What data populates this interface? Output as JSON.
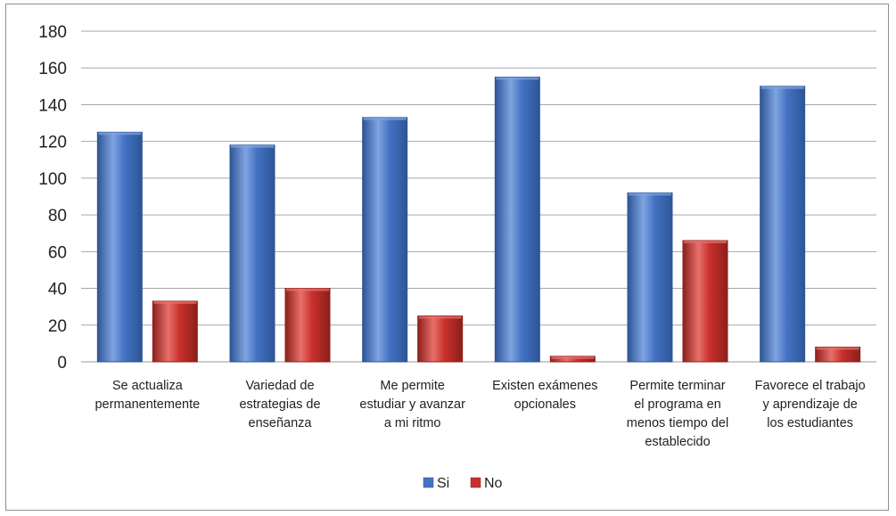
{
  "chart_data": {
    "type": "bar",
    "categories": [
      [
        "Se actualiza",
        "permanentemente"
      ],
      [
        "Variedad de",
        "estrategias de",
        "enseñanza"
      ],
      [
        "Me permite",
        "estudiar y avanzar",
        "a mi ritmo"
      ],
      [
        "Existen exámenes",
        "opcionales"
      ],
      [
        "Permite terminar",
        "el programa en",
        "menos tiempo del",
        "establecido"
      ],
      [
        "Favorece el trabajo",
        "y aprendizaje de",
        "los estudiantes"
      ]
    ],
    "series": [
      {
        "name": "Si",
        "values": [
          125,
          118,
          133,
          155,
          92,
          150
        ],
        "color": "#4472c4",
        "dark": "#2d5596",
        "light": "#7fa4e0"
      },
      {
        "name": "No",
        "values": [
          33,
          40,
          25,
          3,
          66,
          8
        ],
        "color": "#c9302c",
        "dark": "#8c1f1b",
        "light": "#e8706b"
      }
    ],
    "ylim": [
      0,
      180
    ],
    "yticks": [
      0,
      20,
      40,
      60,
      80,
      100,
      120,
      140,
      160,
      180
    ],
    "grid": true,
    "legend_position": "bottom"
  }
}
